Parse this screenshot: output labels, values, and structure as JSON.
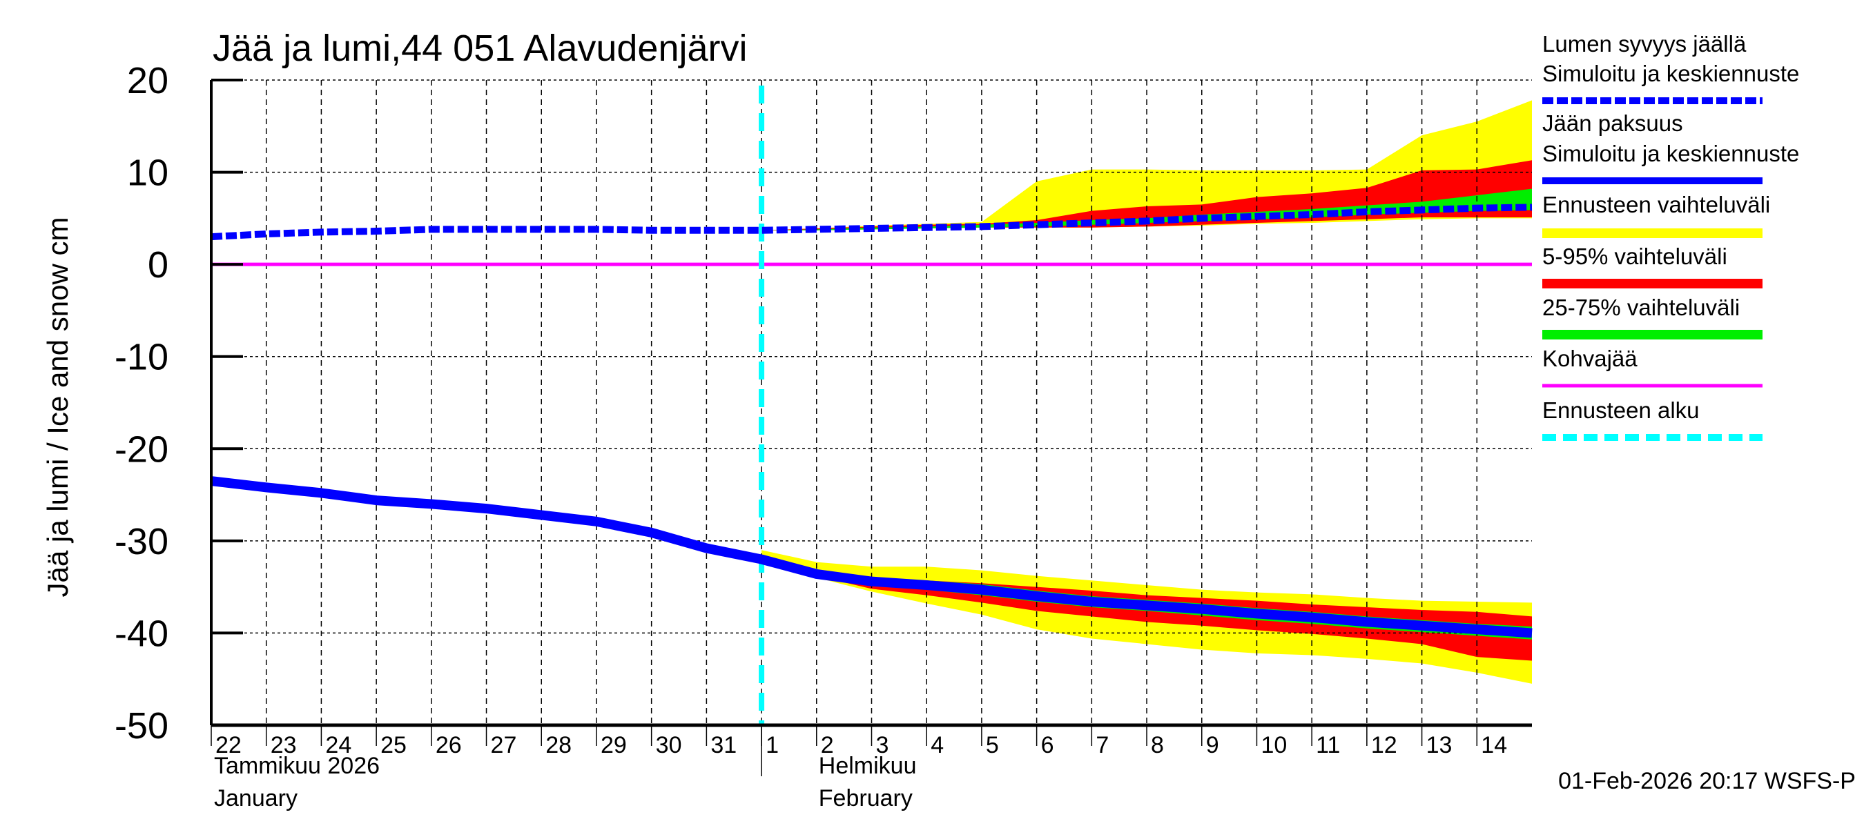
{
  "chart_data": {
    "type": "area",
    "title": "Jää ja lumi,44 051 Alavudenjärvi",
    "ylabel": "Jää ja lumi / Ice and snow    cm",
    "ylim": [
      -50,
      20
    ],
    "yticks": [
      20,
      10,
      0,
      -10,
      -20,
      -30,
      -40,
      -50
    ],
    "grid": true,
    "x_dates": [
      "2026-01-22",
      "2026-01-23",
      "2026-01-24",
      "2026-01-25",
      "2026-01-26",
      "2026-01-27",
      "2026-01-28",
      "2026-01-29",
      "2026-01-30",
      "2026-01-31",
      "2026-02-01",
      "2026-02-02",
      "2026-02-03",
      "2026-02-04",
      "2026-02-05",
      "2026-02-06",
      "2026-02-07",
      "2026-02-08",
      "2026-02-09",
      "2026-02-10",
      "2026-02-11",
      "2026-02-12",
      "2026-02-13",
      "2026-02-14",
      "2026-02-15"
    ],
    "xtick_labels": [
      "22",
      "23",
      "24",
      "25",
      "26",
      "27",
      "28",
      "29",
      "30",
      "31",
      "1",
      "2",
      "3",
      "4",
      "5",
      "6",
      "7",
      "8",
      "9",
      "10",
      "11",
      "12",
      "13",
      "14"
    ],
    "month_labels": [
      {
        "line1": "Tammikuu  2026",
        "line2": "January"
      },
      {
        "line1": "Helmikuu",
        "line2": "February"
      }
    ],
    "forecast_start": "2026-02-01",
    "snow_depth": [
      3.0,
      3.3,
      3.5,
      3.6,
      3.8,
      3.8,
      3.8,
      3.8,
      3.7,
      3.7,
      3.7,
      3.8,
      3.9,
      4.0,
      4.1,
      4.3,
      4.5,
      4.7,
      5.0,
      5.2,
      5.4,
      5.7,
      5.9,
      6.1,
      6.2
    ],
    "ice_thickness": [
      -23.5,
      -24.2,
      -24.8,
      -25.6,
      -26.0,
      -26.5,
      -27.2,
      -27.9,
      -29.1,
      -30.8,
      -32.0,
      -33.6,
      -34.4,
      -34.8,
      -35.3,
      -36.0,
      -36.6,
      -37.0,
      -37.4,
      -37.9,
      -38.3,
      -38.8,
      -39.2,
      -39.6,
      -40.0
    ],
    "kohvajaa": 0,
    "snow_bands_from": "2026-02-01",
    "snow_yellow_upper": [
      3.7,
      3.9,
      4.2,
      4.4,
      4.6,
      9.0,
      10.3,
      10.3,
      10.2,
      10.2,
      10.2,
      10.3,
      14.0,
      15.5,
      17.8
    ],
    "snow_yellow_lower": [
      3.7,
      3.7,
      3.8,
      3.9,
      4.0,
      4.0,
      4.0,
      4.1,
      4.2,
      4.4,
      4.5,
      4.7,
      4.9,
      5.0,
      5.0
    ],
    "snow_red_upper": [
      3.7,
      3.9,
      4.1,
      4.3,
      4.4,
      4.8,
      5.8,
      6.3,
      6.5,
      7.3,
      7.7,
      8.3,
      10.2,
      10.3,
      11.3
    ],
    "snow_red_lower": [
      3.7,
      3.7,
      3.8,
      3.9,
      4.0,
      4.0,
      4.0,
      4.1,
      4.3,
      4.5,
      4.7,
      4.9,
      5.1,
      5.1,
      5.1
    ],
    "snow_green_upper": [
      3.7,
      3.8,
      4.0,
      4.1,
      4.3,
      4.5,
      4.8,
      5.0,
      5.4,
      5.7,
      6.0,
      6.4,
      6.8,
      7.5,
      8.2
    ],
    "snow_green_lower": [
      3.7,
      3.7,
      3.8,
      3.9,
      4.0,
      4.1,
      4.3,
      4.5,
      4.7,
      4.9,
      5.1,
      5.4,
      5.6,
      5.8,
      5.9
    ],
    "ice_yellow_upper": [
      -31.0,
      -32.3,
      -32.8,
      -32.8,
      -33.2,
      -33.8,
      -34.3,
      -34.8,
      -35.3,
      -35.6,
      -35.8,
      -36.2,
      -36.5,
      -36.6,
      -36.7
    ],
    "ice_yellow_lower": [
      -32.0,
      -34.0,
      -35.5,
      -36.8,
      -38.0,
      -39.6,
      -40.6,
      -41.2,
      -41.8,
      -42.2,
      -42.4,
      -42.8,
      -43.3,
      -44.3,
      -45.5
    ],
    "ice_red_upper": [
      -32.0,
      -33.6,
      -34.2,
      -34.3,
      -34.6,
      -35.0,
      -35.4,
      -35.9,
      -36.2,
      -36.5,
      -36.9,
      -37.2,
      -37.5,
      -37.7,
      -38.2
    ],
    "ice_red_lower": [
      -32.0,
      -33.8,
      -35.2,
      -35.9,
      -36.7,
      -37.6,
      -38.2,
      -38.8,
      -39.2,
      -39.7,
      -40.1,
      -40.6,
      -41.2,
      -42.6,
      -43.0
    ],
    "ice_green_upper": [
      -32.0,
      -33.3,
      -34.0,
      -34.3,
      -34.7,
      -35.4,
      -36.0,
      -36.4,
      -36.8,
      -37.3,
      -37.7,
      -38.2,
      -38.6,
      -39.0,
      -39.3
    ],
    "ice_green_lower": [
      -32.0,
      -33.8,
      -34.7,
      -35.3,
      -35.9,
      -36.6,
      -37.2,
      -37.6,
      -38.1,
      -38.6,
      -39.0,
      -39.5,
      -39.9,
      -40.3,
      -40.7
    ],
    "legend_placement": "right",
    "legend": [
      {
        "line1": "Lumen syvyys jäällä",
        "line2": "Simuloitu ja keskiennuste",
        "color": "#0000ff",
        "style": "dashed"
      },
      {
        "line1": "Jään paksuus",
        "line2": "Simuloitu ja keskiennuste",
        "color": "#0000ff",
        "style": "solid"
      },
      {
        "line1": "Ennusteen vaihteluväli",
        "color": "#ffff00",
        "style": "band"
      },
      {
        "line1": "5-95% vaihteluväli",
        "color": "#ff0000",
        "style": "band"
      },
      {
        "line1": "25-75% vaihteluväli",
        "color": "#00ee00",
        "style": "band"
      },
      {
        "line1": "Kohvajää",
        "color": "#ff00ff",
        "style": "solid"
      },
      {
        "line1": "Ennusteen alku",
        "color": "#00ffff",
        "style": "dashed"
      }
    ],
    "footer": "01-Feb-2026 20:17 WSFS-P"
  }
}
